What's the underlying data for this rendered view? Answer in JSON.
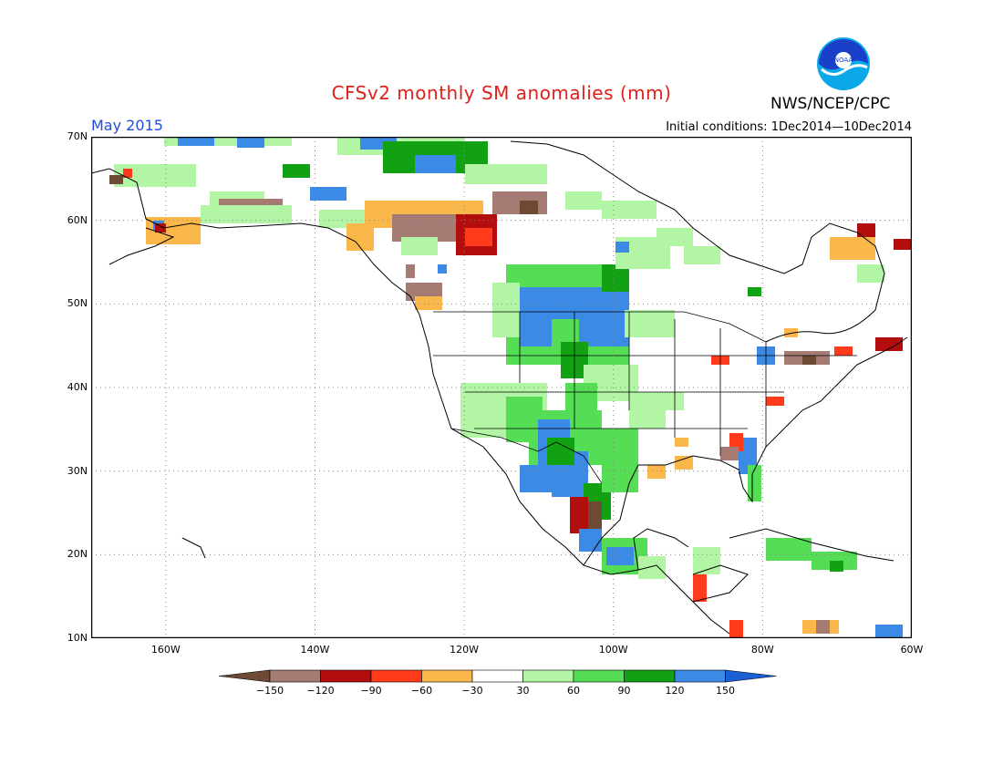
{
  "header": {
    "title": "CFSv2 monthly SM anomalies (mm)",
    "agency": "NWS/NCEP/CPC",
    "logo_text": "NOAA",
    "valid_month": "May 2015",
    "initial_conditions": "Initial conditions: 1Dec2014—10Dec2014"
  },
  "map": {
    "lat_labels": [
      "70N",
      "60N",
      "50N",
      "40N",
      "30N",
      "20N",
      "10N"
    ],
    "lon_labels": [
      "160W",
      "140W",
      "120W",
      "100W",
      "80W",
      "60W"
    ],
    "lat_values": [
      70,
      60,
      50,
      40,
      30,
      20,
      10
    ],
    "lon_values": [
      -160,
      -140,
      -120,
      -100,
      -80,
      -60
    ],
    "extent": {
      "lon_min": -170,
      "lon_max": -60,
      "lat_min": 10,
      "lat_max": 70
    }
  },
  "colorbar": {
    "labels": [
      "−150",
      "−120",
      "−90",
      "−60",
      "−30",
      "30",
      "60",
      "90",
      "120",
      "150"
    ],
    "colors": [
      "#6e4a35",
      "#a57b73",
      "#b20e0e",
      "#ff3b1c",
      "#fbb84a",
      "#ffffff",
      "#b2f5a5",
      "#55dd55",
      "#12a112",
      "#3b8ae6",
      "#1a5fd6"
    ]
  },
  "anomaly_colors": {
    "dark_brown": "#6e4a35",
    "brown": "#a57b73",
    "dark_red": "#b20e0e",
    "red": "#ff3b1c",
    "orange": "#fbb84a",
    "light_green": "#b2f5a5",
    "green": "#55dd55",
    "dark_green": "#12a112",
    "blue": "#3b8ae6"
  }
}
